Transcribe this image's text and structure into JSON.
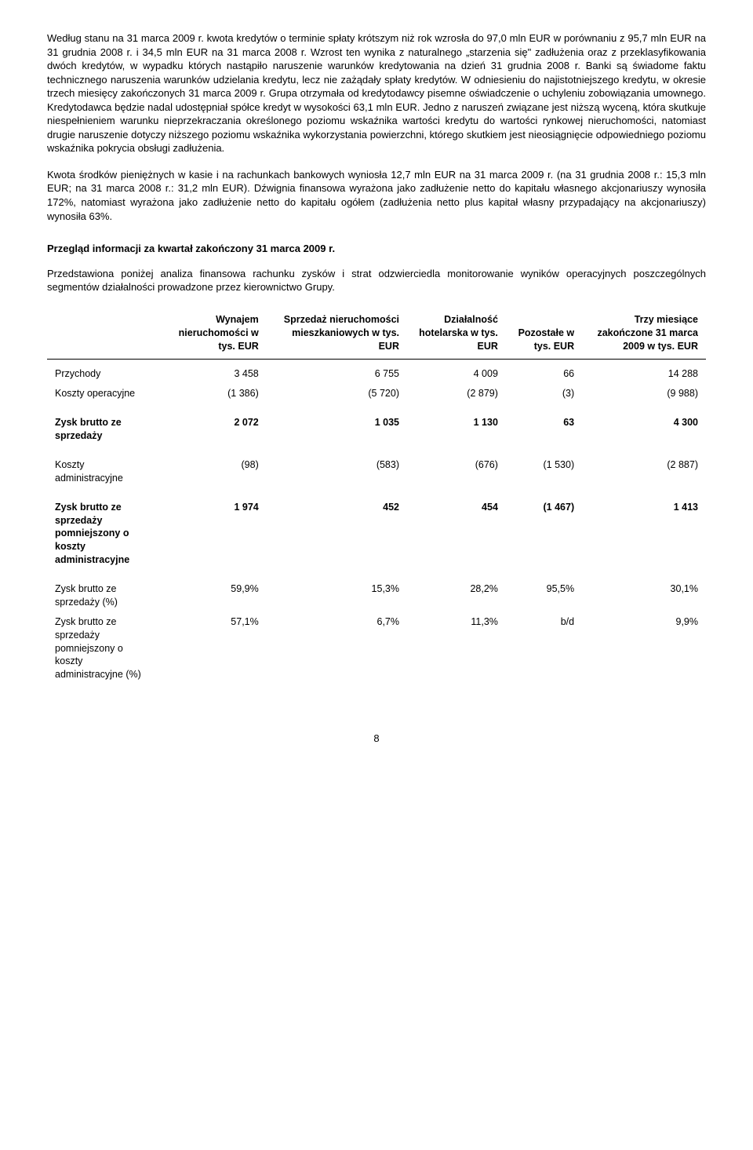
{
  "paragraphs": {
    "p1": "Według stanu na 31 marca 2009 r. kwota kredytów o terminie spłaty krótszym niż rok wzrosła do 97,0 mln EUR w porównaniu z 95,7 mln EUR na 31 grudnia 2008 r. i 34,5 mln EUR na 31 marca 2008 r. Wzrost ten wynika z naturalnego „starzenia się\" zadłużenia oraz z przeklasyfikowania dwóch kredytów, w wypadku których nastąpiło naruszenie warunków kredytowania na dzień 31 grudnia 2008 r. Banki są świadome faktu technicznego naruszenia warunków udzielania kredytu, lecz nie zażądały spłaty kredytów. W odniesieniu do najistotniejszego kredytu, w okresie trzech miesięcy zakończonych 31 marca 2009 r. Grupa otrzymała od kredytodawcy pisemne oświadczenie o uchyleniu zobowiązania umownego. Kredytodawca będzie nadal udostępniał spółce kredyt w wysokości 63,1 mln EUR. Jedno z naruszeń związane jest niższą wyceną, która skutkuje niespełnieniem warunku nieprzekraczania określonego poziomu wskaźnika wartości kredytu do wartości rynkowej nieruchomości, natomiast drugie naruszenie dotyczy niższego poziomu wskaźnika wykorzystania powierzchni, którego skutkiem jest nieosiągnięcie odpowiedniego poziomu wskaźnika pokrycia obsługi zadłużenia.",
    "p2": "Kwota środków pieniężnych w kasie i na rachunkach bankowych wyniosła 12,7 mln EUR na 31 marca 2009 r. (na 31 grudnia 2008 r.: 15,3 mln EUR; na 31 marca 2008 r.: 31,2 mln EUR). Dźwignia finansowa wyrażona jako zadłużenie netto do kapitału własnego akcjonariuszy wynosiła 172%, natomiast wyrażona jako zadłużenie netto do kapitału ogółem (zadłużenia netto plus kapitał własny przypadający na akcjonariuszy) wynosiła 63%.",
    "h1": "Przegląd informacji za kwartał zakończony 31 marca 2009 r.",
    "p3": "Przedstawiona poniżej analiza finansowa rachunku zysków i strat odzwierciedla monitorowanie wyników operacyjnych poszczególnych segmentów działalności prowadzone przez kierownictwo Grupy."
  },
  "table": {
    "columns": {
      "c0": "",
      "c1": "Wynajem nieruchomości w tys. EUR",
      "c2": "Sprzedaż nieruchomości mieszkaniowych w tys. EUR",
      "c3": "Działalność hotelarska w tys. EUR",
      "c4": "Pozostałe w tys. EUR",
      "c5": "Trzy miesiące zakończone 31 marca 2009 w tys. EUR"
    },
    "rows": {
      "r0": {
        "label": "Przychody",
        "v1": "3 458",
        "v2": "6 755",
        "v3": "4 009",
        "v4": "66",
        "v5": "14 288"
      },
      "r1": {
        "label": "Koszty operacyjne",
        "v1": "(1 386)",
        "v2": "(5 720)",
        "v3": "(2 879)",
        "v4": "(3)",
        "v5": "(9 988)"
      },
      "r2": {
        "label": "Zysk brutto ze sprzedaży",
        "v1": "2 072",
        "v2": "1 035",
        "v3": "1 130",
        "v4": "63",
        "v5": "4 300"
      },
      "r3": {
        "label": "Koszty administracyjne",
        "v1": "(98)",
        "v2": "(583)",
        "v3": "(676)",
        "v4": "(1 530)",
        "v5": "(2 887)"
      },
      "r4": {
        "label": "Zysk brutto ze sprzedaży pomniejszony o koszty administracyjne",
        "v1": "1 974",
        "v2": "452",
        "v3": "454",
        "v4": "(1 467)",
        "v5": "1 413"
      },
      "r5": {
        "label": "Zysk brutto ze sprzedaży (%)",
        "v1": "59,9%",
        "v2": "15,3%",
        "v3": "28,2%",
        "v4": "95,5%",
        "v5": "30,1%"
      },
      "r6": {
        "label": "Zysk brutto ze sprzedaży pomniejszony o koszty administracyjne (%)",
        "v1": "57,1%",
        "v2": "6,7%",
        "v3": "11,3%",
        "v4": "b/d",
        "v5": "9,9%"
      }
    }
  },
  "pageNumber": "8"
}
